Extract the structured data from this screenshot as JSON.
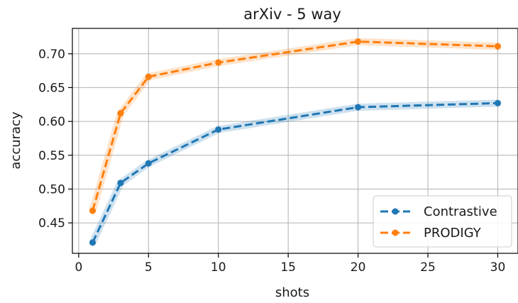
{
  "chart_data": {
    "type": "line",
    "title": "arXiv - 5 way",
    "xlabel": "shots",
    "ylabel": "accuracy",
    "xlim": [
      -0.45,
      31.45
    ],
    "ylim": [
      0.405,
      0.7375
    ],
    "xticks": [
      0,
      5,
      10,
      15,
      20,
      25,
      30
    ],
    "yticks": [
      0.45,
      0.5,
      0.55,
      0.6,
      0.65,
      0.7
    ],
    "ytick_labels": [
      "0.45",
      "0.50",
      "0.55",
      "0.60",
      "0.65",
      "0.70"
    ],
    "grid": true,
    "legend_position": "bottom-right",
    "x": [
      1,
      3,
      5,
      10,
      20,
      30
    ],
    "series": [
      {
        "name": "Contrastive",
        "color": "#1f77b4",
        "values": [
          0.421,
          0.509,
          0.538,
          0.588,
          0.621,
          0.627
        ]
      },
      {
        "name": "PRODIGY",
        "color": "#ff7f0e",
        "values": [
          0.468,
          0.612,
          0.666,
          0.687,
          0.718,
          0.711
        ]
      }
    ]
  }
}
